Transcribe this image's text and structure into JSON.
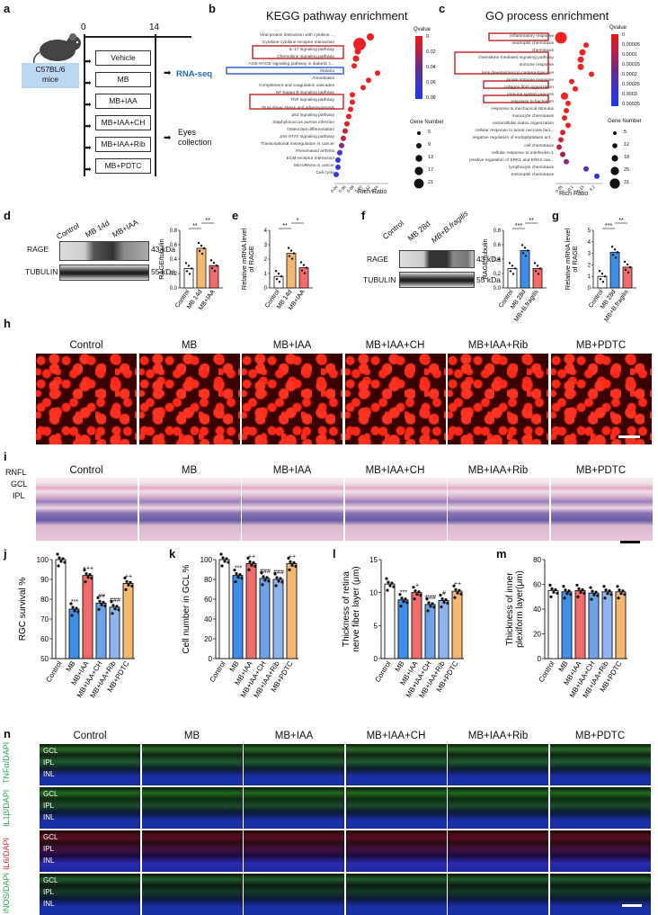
{
  "panel_letters": [
    "a",
    "b",
    "c",
    "d",
    "e",
    "f",
    "g",
    "h",
    "i",
    "j",
    "k",
    "l",
    "m",
    "n"
  ],
  "a": {
    "mouse_label": "C57BL/6\nmice",
    "day_start": "0",
    "day_end": "14",
    "groups": [
      "Vehicle",
      "MB",
      "MB+IAA",
      "MB+IAA+CH",
      "MB+IAA+Rib",
      "MB+PDTC"
    ],
    "rnaseq": "RNA-seq",
    "eyes": "Eyes\ncollection"
  },
  "b": {
    "title": "KEGG pathway enrichment",
    "xlabel": "Rich Ratio",
    "legend_q_title": "Qvalue",
    "q_ticks": [
      "0",
      "0.02",
      "0.04",
      "0.06",
      "0.08"
    ],
    "legend_n_title": "Gene Number",
    "n_ticks": [
      "5",
      "9",
      "13",
      "17",
      "21"
    ],
    "terms": [
      "Viral protein interaction with cytokine ...",
      "Cytokine-cytokine receptor interaction",
      "IL-17 signaling pathway",
      "Chemokine signaling pathway",
      "AGE-RAGE signaling pathway in diabetic c...",
      "Malaria",
      "Amoebiasis",
      "Complement and coagulation cascades",
      "NF-kappa B signaling pathway",
      "TNF signaling pathway",
      "Fluid shear stress and atherosclerosis",
      "p53 signaling pathway",
      "Staphylococcus aureus infection",
      "Osteoclast differentiation",
      "JAK-STAT signaling pathway",
      "Transcriptional misregulation in cancer",
      "Rheumatoid arthritis",
      "ECM-receptor interaction",
      "MicroRNAs in cancer",
      "Cell cycle"
    ],
    "x_ticks": [
      "0.04",
      "0.06",
      "0.08",
      "0.10",
      "0.12",
      "0.14"
    ]
  },
  "c": {
    "title": "GO process enrichment",
    "xlabel": "Rich Ratio",
    "legend_q_title": "Qvalue",
    "q_ticks": [
      "0",
      "0.00005",
      "0.0001",
      "0.00015",
      "0.0002",
      "0.00025",
      "0.0003",
      "0.00035"
    ],
    "legend_n_title": "Gene Number",
    "n_ticks": [
      "5",
      "12",
      "18",
      "25",
      "31"
    ],
    "terms": [
      "Inflammatory response",
      "neutrophil chemotaxis",
      "chemotaxis",
      "chemokine-mediated signaling pathway",
      "immune response",
      "lens development in camera-type eye",
      "innate immune response",
      "collagen fibril organization",
      "immune system process",
      "response to bacterium",
      "response to mechanical stimulus",
      "monocyte chemotaxis",
      "extracellular matrix organization",
      "cellular response to tumor necrosis fact...",
      "negative regulation of endopeptidase act...",
      "cell chemotaxis",
      "cellular response to interleukin-1",
      "positive regulation of ERK1 and ERK2 cas...",
      "lymphocyte chemotaxis",
      "eosinophil chemotaxis"
    ],
    "x_ticks": [
      "0.05",
      "0.1",
      "0.15",
      "0.2"
    ]
  },
  "d": {
    "lanes": [
      "Control",
      "MB 14d",
      "MB+IAA"
    ],
    "rows": [
      "RAGE",
      "TUBULIN"
    ],
    "kda": [
      "43 kDa",
      "55 kDa"
    ],
    "ylabel": "RAGE/tubulin",
    "sig": [
      "**",
      "**"
    ]
  },
  "e": {
    "ylabel": "Relative mRNA level\nof RAGE",
    "xl": [
      "Control",
      "MB 14d",
      "MB+IAA"
    ],
    "sig": [
      "**",
      "*"
    ]
  },
  "f": {
    "lanes": [
      "Control",
      "MB 28d",
      "MB+B.fragilis"
    ],
    "rows": [
      "RAGE",
      "TUBULIN"
    ],
    "kda": [
      "43 kDa",
      "55 kDa"
    ],
    "ylabel": "RAGE/tubulin",
    "sig": [
      "***",
      "**"
    ]
  },
  "g": {
    "ylabel": "Relative mRNA level\nof RAGE",
    "xl": [
      "Control",
      "MB 28d",
      "MB+B.fragilis"
    ],
    "sig": [
      "***",
      "**"
    ]
  },
  "h": {
    "captions": [
      "Control",
      "MB",
      "MB+IAA",
      "MB+IAA+CH",
      "MB+IAA+Rib",
      "MB+PDTC"
    ]
  },
  "i": {
    "captions": [
      "Control",
      "MB",
      "MB+IAA",
      "MB+IAA+CH",
      "MB+IAA+Rib",
      "MB+PDTC"
    ],
    "layers": [
      "RNFL",
      "GCL",
      "IPL"
    ]
  },
  "groups6": [
    "Control",
    "MB",
    "MB+IAA",
    "MB+IAA+CH",
    "MB+IAA+Rib",
    "MB+PDTC"
  ],
  "j": {
    "ylabel": "RGC survival %",
    "yticks": [
      "100",
      "90",
      "80",
      "70",
      "60",
      "50"
    ],
    "sig": [
      "",
      "***",
      "+++",
      "##",
      "###",
      "++"
    ]
  },
  "k": {
    "ylabel": "Cell number in GCL %",
    "yticks": [
      "100",
      "80",
      "60",
      "40",
      "20",
      "0"
    ],
    "sig": [
      "",
      "***",
      "++",
      "###",
      "###",
      "++"
    ]
  },
  "l": {
    "ylabel": "Thickness of retina\nnerve fiber layer (μm)",
    "yticks": [
      "15",
      "10",
      "5",
      "0"
    ],
    "sig": [
      "",
      "***",
      "+",
      "###",
      "#",
      "++"
    ]
  },
  "m": {
    "ylabel": "Thickness of inner\nplexiform layer(μm)",
    "yticks": [
      "80",
      "60",
      "40",
      "20",
      "0"
    ],
    "sig": [
      "",
      "",
      "",
      "",
      "",
      ""
    ]
  },
  "n": {
    "captions": [
      "Control",
      "MB",
      "MB+IAA",
      "MB+IAA+CH",
      "MB+IAA+Rib",
      "MB+PDTC"
    ],
    "markers": [
      "TNFα/DAPI",
      "IL1β/DAPI",
      "IL6/DAPI",
      "iNOS/DAPI"
    ],
    "layers": [
      "GCL",
      "IPL",
      "INL"
    ]
  },
  "colors": {
    "control": "#ffffff",
    "mb": "#3d8fe8",
    "iaa": "#f36b6b",
    "ch": "#6ea2e8",
    "rib": "#8fb4ee",
    "pdtc": "#f5b870",
    "red": "#e21e1e",
    "blue": "#2a3ac8"
  },
  "chart_data": [
    {
      "type": "bar",
      "id": "j",
      "categories": [
        "Control",
        "MB",
        "MB+IAA",
        "MB+IAA+CH",
        "MB+IAA+Rib",
        "MB+PDTC"
      ],
      "values": [
        100,
        75,
        92,
        78,
        76,
        88
      ],
      "ylabel": "RGC survival %",
      "ylim": [
        50,
        100
      ]
    },
    {
      "type": "bar",
      "id": "k",
      "categories": [
        "Control",
        "MB",
        "MB+IAA",
        "MB+IAA+CH",
        "MB+IAA+Rib",
        "MB+PDTC"
      ],
      "values": [
        100,
        84,
        96,
        81,
        80,
        96
      ],
      "ylabel": "Cell number in GCL %",
      "ylim": [
        0,
        110
      ]
    },
    {
      "type": "bar",
      "id": "l",
      "categories": [
        "Control",
        "MB",
        "MB+IAA",
        "MB+IAA+CH",
        "MB+IAA+Rib",
        "MB+PDTC"
      ],
      "values": [
        11.3,
        8.9,
        10.0,
        8.2,
        8.8,
        10.2
      ],
      "ylabel": "Thickness of retina nerve fiber layer (μm)",
      "ylim": [
        0,
        15
      ]
    },
    {
      "type": "bar",
      "id": "m",
      "categories": [
        "Control",
        "MB",
        "MB+IAA",
        "MB+IAA+CH",
        "MB+IAA+Rib",
        "MB+PDTC"
      ],
      "values": [
        55,
        54,
        55,
        53,
        54,
        54
      ],
      "ylabel": "Thickness of inner plexiform layer(μm)",
      "ylim": [
        0,
        80
      ]
    },
    {
      "type": "bar",
      "id": "d",
      "categories": [
        "Control",
        "MB 14d",
        "MB+IAA"
      ],
      "values": [
        0.27,
        0.55,
        0.31
      ],
      "ylabel": "RAGE/tubulin"
    },
    {
      "type": "bar",
      "id": "e",
      "categories": [
        "Control",
        "MB 14d",
        "MB+IAA"
      ],
      "values": [
        0.8,
        2.4,
        1.4
      ],
      "ylabel": "Relative mRNA level of RAGE"
    },
    {
      "type": "bar",
      "id": "f",
      "categories": [
        "Control",
        "MB 28d",
        "MB+B.fragilis"
      ],
      "values": [
        0.27,
        0.52,
        0.27
      ],
      "ylabel": "RAGE/tubulin"
    },
    {
      "type": "bar",
      "id": "g",
      "categories": [
        "Control",
        "MB 28d",
        "MB+B.fragilis"
      ],
      "values": [
        1.0,
        3.1,
        1.8
      ],
      "ylabel": "Relative mRNA level of RAGE"
    }
  ]
}
